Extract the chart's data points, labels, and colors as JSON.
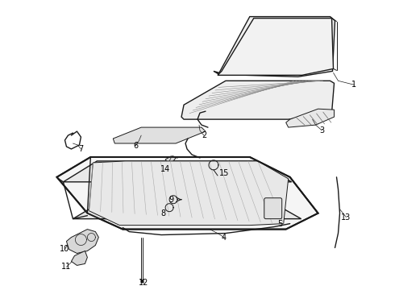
{
  "bg_color": "#ffffff",
  "line_color": "#1a1a1a",
  "fig_width": 4.9,
  "fig_height": 3.6,
  "dpi": 100,
  "font_size": 7,
  "label_color": "#000000"
}
